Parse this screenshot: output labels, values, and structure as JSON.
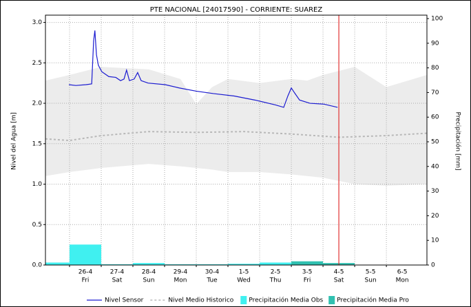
{
  "chart_data": {
    "type": "hydro",
    "title": "PTE NACIONAL [24017590] - CORRIENTE: SUAREZ",
    "ylabel": "Nivel del Agua [m]",
    "y2label": "Precipitación [mm]",
    "xlim": [
      -0.76,
      11.28
    ],
    "xticks": [
      {
        "value": 0,
        "label": "26-4",
        "day": "Fri"
      },
      {
        "value": 1,
        "label": "27-4",
        "day": "Sat"
      },
      {
        "value": 2,
        "label": "28-4",
        "day": "Sun"
      },
      {
        "value": 3,
        "label": "29-4",
        "day": "Mon"
      },
      {
        "value": 4,
        "label": "30-4",
        "day": "Tue"
      },
      {
        "value": 5,
        "label": "1-5",
        "day": "Wed"
      },
      {
        "value": 6,
        "label": "2-5",
        "day": "Thu"
      },
      {
        "value": 7,
        "label": "3-5",
        "day": "Fri"
      },
      {
        "value": 8,
        "label": "4-5",
        "day": "Sat"
      },
      {
        "value": 9,
        "label": "5-5",
        "day": "Sun"
      },
      {
        "value": 10,
        "label": "6-5",
        "day": "Mon"
      }
    ],
    "ylim": [
      0,
      3.09
    ],
    "yticks": [
      {
        "value": 0,
        "label": "0.0"
      },
      {
        "value": 0.5,
        "label": "0.5"
      },
      {
        "value": 1,
        "label": "1.0"
      },
      {
        "value": 1.5,
        "label": "1.5"
      },
      {
        "value": 2,
        "label": "2.0"
      },
      {
        "value": 2.5,
        "label": "2.5"
      },
      {
        "value": 3,
        "label": "3.0"
      }
    ],
    "y2lim": [
      0,
      101.4
    ],
    "y2ticks": [
      0,
      10,
      20,
      30,
      40,
      50,
      60,
      70,
      80,
      90,
      100
    ],
    "grid": true,
    "marker_x": 8.5,
    "marker_color": "#e03030",
    "band": {
      "color": "#ececec",
      "x": [
        -0.76,
        0,
        1,
        2.5,
        3.5,
        4,
        4.5,
        5,
        6,
        7,
        7.5,
        8,
        9,
        10,
        11.28
      ],
      "upper": [
        2.28,
        2.35,
        2.45,
        2.42,
        2.3,
        1.99,
        2.2,
        2.3,
        2.25,
        2.3,
        2.28,
        2.35,
        2.45,
        2.2,
        2.35
      ],
      "lower": [
        1.1,
        1.15,
        1.2,
        1.25,
        1.22,
        1.2,
        1.18,
        1.15,
        1.15,
        1.12,
        1.1,
        1.08,
        1.0,
        0.98,
        1.0
      ]
    },
    "series": [
      {
        "name": "Nivel Sensor",
        "color": "#1a1ad0",
        "style": "solid",
        "x": [
          -0.02,
          0.2,
          0.52,
          0.7,
          0.76,
          0.8,
          0.85,
          0.91,
          1.02,
          1.24,
          1.46,
          1.61,
          1.72,
          1.8,
          1.89,
          2.04,
          2.15,
          2.26,
          2.48,
          3.02,
          3.46,
          4.0,
          4.54,
          5.2,
          5.85,
          6.5,
          6.76,
          6.89,
          7.0,
          7.1,
          7.26,
          7.59,
          8.02,
          8.46
        ],
        "values": [
          2.23,
          2.22,
          2.23,
          2.24,
          2.77,
          2.9,
          2.6,
          2.47,
          2.39,
          2.33,
          2.32,
          2.28,
          2.3,
          2.41,
          2.28,
          2.3,
          2.38,
          2.28,
          2.25,
          2.23,
          2.19,
          2.15,
          2.12,
          2.09,
          2.04,
          1.98,
          1.95,
          2.09,
          2.19,
          2.13,
          2.04,
          2.0,
          1.99,
          1.95
        ]
      },
      {
        "name": "Nivel Medio Historico",
        "color": "#b8b8b8",
        "style": "dashed",
        "x": [
          -0.76,
          0,
          1,
          2.5,
          4,
          5.5,
          7,
          8.5,
          10,
          11.28
        ],
        "values": [
          1.56,
          1.54,
          1.6,
          1.65,
          1.64,
          1.65,
          1.62,
          1.58,
          1.6,
          1.63
        ]
      }
    ],
    "bars": [
      {
        "name": "Precipitación Media Obs",
        "color": "#40f0f0",
        "axis": "y2",
        "bins": [
          -0.76,
          0,
          1,
          2,
          3,
          4,
          5,
          6,
          7
        ],
        "values": [
          1,
          8.3,
          0.3,
          0.8,
          0.3,
          0.3,
          0.5,
          1
        ]
      },
      {
        "name": "Precipitación Media Pro",
        "color": "#30c0b0",
        "axis": "y2",
        "bins": [
          7,
          8,
          9
        ],
        "values": [
          1.5,
          0.8
        ]
      }
    ]
  }
}
